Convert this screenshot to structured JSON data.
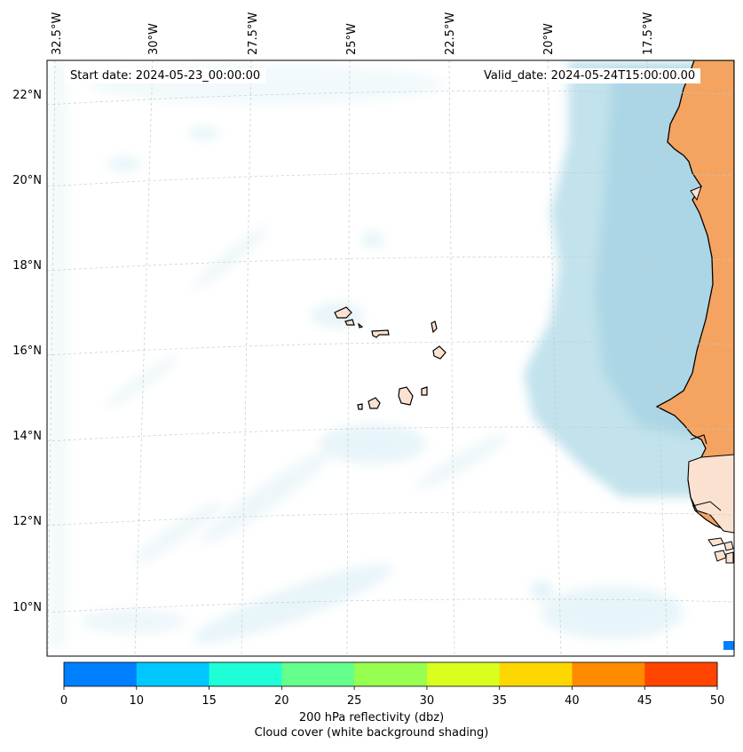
{
  "header": {
    "start_date": "Start date: 2024-05-23_00:00:00",
    "valid_date": "Valid_date: 2024-05-24T15:00:00.00"
  },
  "map": {
    "longitude_labels": [
      "32.5°W",
      "30°W",
      "27.5°W",
      "25°W",
      "22.5°W",
      "20°W",
      "17.5°W"
    ],
    "latitude_labels": [
      "22°N",
      "20°N",
      "18°N",
      "16°N",
      "14°N",
      "12°N",
      "10°N"
    ],
    "land_color": "#f4a460",
    "cloud_color": "#add8e6"
  },
  "colorbar": {
    "ticks": [
      "0",
      "10",
      "15",
      "20",
      "25",
      "30",
      "35",
      "40",
      "45",
      "50"
    ],
    "colors": [
      "#0080ff",
      "#00c8ff",
      "#1effd8",
      "#64ff8c",
      "#96ff50",
      "#d8ff1e",
      "#ffd700",
      "#ff8c00",
      "#ff4500"
    ],
    "title": "200 hPa reflectivity (dbz)",
    "subtitle": "Cloud cover (white background shading)"
  }
}
